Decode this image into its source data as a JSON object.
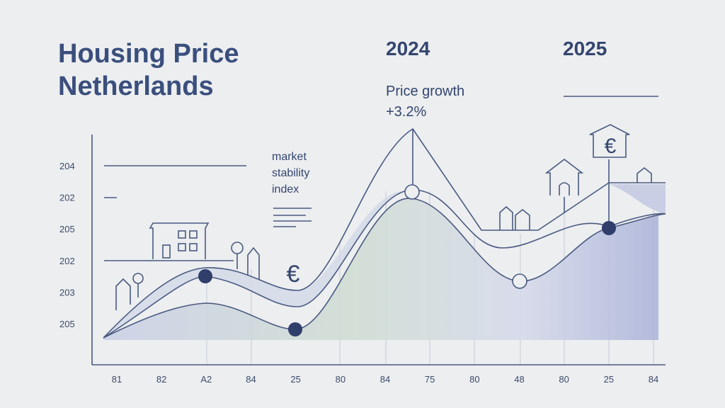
{
  "header": {
    "title": [
      "Housing Price",
      "Netherlands"
    ],
    "years": [
      "2024",
      "2025"
    ]
  },
  "annotation": [
    "Price growth",
    "+3.2%"
  ],
  "side_note": [
    "market",
    "stability",
    "index"
  ],
  "y_labels": [
    "204",
    "202",
    "205",
    "202",
    "203",
    "205"
  ],
  "x_labels": [
    "81",
    "82",
    "A2",
    "84",
    "25",
    "80",
    "84",
    "75",
    "80",
    "48",
    "80",
    "25",
    "84"
  ]
}
